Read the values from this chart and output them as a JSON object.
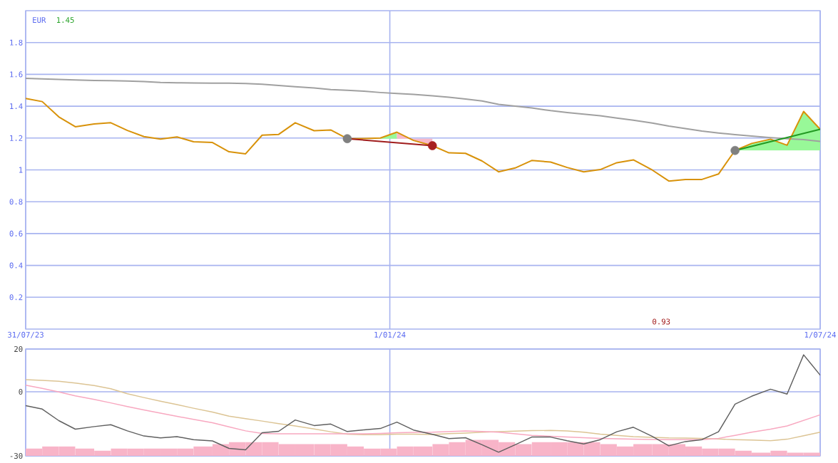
{
  "chart_data": [
    {
      "type": "line",
      "ylabel": "EUR",
      "annotations": [
        "1.45",
        "0.93"
      ],
      "x": [
        "2023-07-31",
        "2023-08-07",
        "2023-08-14",
        "2023-08-21",
        "2023-08-29",
        "2023-09-05",
        "2023-09-12",
        "2023-09-19",
        "2023-09-26",
        "2023-10-03",
        "2023-10-10",
        "2023-10-18",
        "2023-10-25",
        "2023-11-01",
        "2023-11-08",
        "2023-11-15",
        "2023-11-22",
        "2023-11-30",
        "2023-12-07",
        "2023-12-14",
        "2023-12-21",
        "2023-12-28",
        "2024-01-04",
        "2024-01-11",
        "2024-01-19",
        "2024-01-26",
        "2024-02-02",
        "2024-02-09",
        "2024-02-16",
        "2024-02-23",
        "2024-03-01",
        "2024-03-09",
        "2024-03-16",
        "2024-03-23",
        "2024-03-30",
        "2024-04-06",
        "2024-04-13",
        "2024-04-21",
        "2024-04-28",
        "2024-05-05",
        "2024-05-12",
        "2024-05-19",
        "2024-05-26",
        "2024-06-02",
        "2024-06-10",
        "2024-06-17",
        "2024-06-24",
        "2024-07-01"
      ],
      "xlim": [
        "2023-07-31",
        "2024-07-01"
      ],
      "xticks": [
        {
          "value": "2023-07-31",
          "label": "31/07/23"
        },
        {
          "value": "2024-01-01",
          "label": "1/01/24"
        },
        {
          "value": "2024-07-01",
          "label": "1/07/24"
        }
      ],
      "ylim": [
        0,
        2
      ],
      "yticks": [
        0.2,
        0.4,
        0.6,
        0.8,
        1,
        1.2,
        1.4,
        1.6,
        1.8
      ],
      "grid": true,
      "series": [
        {
          "type": "area",
          "color": "#98f898",
          "x": [
            "2023-12-28",
            "2024-01-04"
          ],
          "values": [
            null,
            null
          ],
          "upper": [
            1.2,
            1.237
          ],
          "lower": [
            1.196,
            1.196
          ]
        },
        {
          "type": "area",
          "color": "#f8b8c8",
          "x": [
            "2024-01-04",
            "2024-01-11",
            "2024-01-19"
          ],
          "values": [
            null,
            null,
            null
          ],
          "upper": [
            1.237,
            1.185,
            1.152
          ],
          "lower": [
            1.196,
            1.196,
            1.196
          ]
        },
        {
          "type": "area",
          "color": "#98f898",
          "x": [
            "2024-05-26",
            "2024-06-02",
            "2024-06-10",
            "2024-06-17",
            "2024-06-24",
            "2024-07-01"
          ],
          "values": [
            null,
            null,
            null,
            null,
            null,
            null
          ],
          "upper": [
            1.122,
            1.166,
            1.193,
            1.155,
            1.367,
            1.255
          ],
          "lower": [
            1.122,
            1.122,
            1.122,
            1.122,
            1.122,
            1.122
          ]
        },
        {
          "color": "#a0a0a0",
          "values": [
            1.575,
            1.572,
            1.568,
            1.565,
            1.562,
            1.56,
            1.558,
            1.555,
            1.549,
            1.547,
            1.546,
            1.545,
            1.545,
            1.543,
            1.538,
            1.53,
            1.522,
            1.514,
            1.505,
            1.5,
            1.494,
            1.486,
            1.48,
            1.474,
            1.465,
            1.456,
            1.445,
            1.433,
            1.412,
            1.4,
            1.389,
            1.372,
            1.36,
            1.35,
            1.34,
            1.326,
            1.312,
            1.294,
            1.275,
            1.26,
            1.244,
            1.232,
            1.221,
            1.212,
            1.203,
            1.196,
            1.19,
            1.179
          ]
        },
        {
          "color": "#d8920a",
          "values": [
            1.449,
            1.429,
            1.333,
            1.271,
            1.289,
            1.296,
            1.248,
            1.209,
            1.193,
            1.207,
            1.177,
            1.172,
            1.114,
            1.101,
            1.218,
            1.223,
            1.296,
            1.246,
            1.251,
            1.196,
            1.197,
            1.2,
            1.237,
            1.185,
            1.152,
            1.107,
            1.104,
            1.056,
            0.988,
            1.012,
            1.059,
            1.049,
            1.015,
            0.988,
            1.002,
            1.045,
            1.063,
            0.999,
            0.93,
            0.94,
            0.94,
            0.974,
            1.122,
            1.166,
            1.193,
            1.155,
            1.367,
            1.255
          ]
        },
        {
          "type": "line",
          "color": "#a01c1c",
          "x": [
            "2023-12-14",
            "2024-01-19"
          ],
          "values": [
            1.196,
            1.152
          ]
        },
        {
          "type": "line",
          "color": "#229a22",
          "x": [
            "2024-05-26",
            "2024-07-01"
          ],
          "values": [
            1.122,
            1.255
          ]
        },
        {
          "type": "scatter",
          "color": "#808080",
          "x": [
            "2023-12-14",
            "2024-05-26"
          ],
          "values": [
            1.196,
            1.122
          ]
        },
        {
          "type": "scatter",
          "color": "#a82020",
          "x": [
            "2024-01-19"
          ],
          "values": [
            1.152
          ]
        }
      ]
    },
    {
      "type": "line",
      "x": [
        "2023-07-31",
        "2023-08-07",
        "2023-08-14",
        "2023-08-21",
        "2023-08-29",
        "2023-09-05",
        "2023-09-12",
        "2023-09-19",
        "2023-09-26",
        "2023-10-03",
        "2023-10-10",
        "2023-10-18",
        "2023-10-25",
        "2023-11-01",
        "2023-11-08",
        "2023-11-15",
        "2023-11-22",
        "2023-11-30",
        "2023-12-07",
        "2023-12-14",
        "2023-12-21",
        "2023-12-28",
        "2024-01-04",
        "2024-01-11",
        "2024-01-19",
        "2024-01-26",
        "2024-02-02",
        "2024-02-09",
        "2024-02-16",
        "2024-02-23",
        "2024-03-01",
        "2024-03-09",
        "2024-03-16",
        "2024-03-23",
        "2024-03-30",
        "2024-04-06",
        "2024-04-13",
        "2024-04-21",
        "2024-04-28",
        "2024-05-05",
        "2024-05-12",
        "2024-05-19",
        "2024-05-26",
        "2024-06-02",
        "2024-06-10",
        "2024-06-17",
        "2024-06-24",
        "2024-07-01"
      ],
      "xlim": [
        "2023-07-31",
        "2024-07-01"
      ],
      "xticks": [
        {
          "value": "2023-07-31",
          "label": null
        },
        {
          "value": "2024-01-01",
          "label": null
        },
        {
          "value": "2024-07-01",
          "label": null
        }
      ],
      "ylim": [
        -30,
        20
      ],
      "yticks": [
        -30,
        0,
        20
      ],
      "grid": true,
      "tick_labels": "y",
      "series": [
        {
          "type": "histogram",
          "color": "#f8b4c8",
          "bins": [
            "2023-07-31",
            "2023-08-07",
            "2023-08-14",
            "2023-08-21",
            "2023-08-29",
            "2023-09-05",
            "2023-09-12",
            "2023-09-19",
            "2023-09-26",
            "2023-10-03",
            "2023-10-10",
            "2023-10-18",
            "2023-10-25",
            "2023-11-01",
            "2023-11-08",
            "2023-11-15",
            "2023-11-22",
            "2023-11-30",
            "2023-12-07",
            "2023-12-14",
            "2023-12-21",
            "2023-12-28",
            "2024-01-04",
            "2024-01-11",
            "2024-01-19",
            "2024-01-26",
            "2024-02-02",
            "2024-02-09",
            "2024-02-16",
            "2024-02-23",
            "2024-03-01",
            "2024-03-09",
            "2024-03-16",
            "2024-03-23",
            "2024-03-30",
            "2024-04-06",
            "2024-04-13",
            "2024-04-21",
            "2024-04-28",
            "2024-05-05",
            "2024-05-12",
            "2024-05-19",
            "2024-05-26",
            "2024-06-02",
            "2024-06-10",
            "2024-06-17",
            "2024-06-24",
            "2024-07-01"
          ],
          "base": [
            -30,
            -30,
            -30,
            -30,
            -30,
            -30,
            -30,
            -30,
            -30,
            -30,
            -30,
            -30,
            -30,
            -30,
            -30,
            -30,
            -30,
            -30,
            -30,
            -30,
            -30,
            -30,
            -30,
            -30,
            -30,
            -30,
            -30,
            -30,
            -30,
            -30,
            -30,
            -30,
            -30,
            -30,
            -30,
            -30,
            -30,
            -30,
            -30,
            -30,
            -30,
            -30,
            -30,
            -30,
            -30,
            -30,
            -30
          ],
          "values": [
            3.4,
            4.4,
            4.4,
            3.4,
            2.4,
            3.4,
            3.4,
            3.4,
            3.4,
            3.4,
            4.4,
            5.5,
            6.4,
            6.4,
            6.4,
            5.5,
            5.5,
            5.5,
            5.5,
            4.4,
            3.4,
            3.4,
            4.4,
            4.4,
            5.5,
            6.4,
            7.5,
            7.5,
            6.4,
            5.5,
            6.4,
            6.4,
            6.4,
            6.4,
            5.5,
            4.4,
            5.5,
            5.5,
            5.5,
            4.4,
            3.4,
            3.4,
            2.4,
            1.5,
            2.4,
            1.5,
            1.5
          ]
        },
        {
          "color": "#dcc494",
          "values": [
            5.7,
            5.3,
            4.9,
            4.1,
            2.9,
            1.4,
            -0.9,
            -2.7,
            -4.4,
            -6.0,
            -7.7,
            -9.5,
            -11.4,
            -12.6,
            -13.7,
            -14.9,
            -16.0,
            -17.4,
            -18.7,
            -19.8,
            -20.1,
            -20.1,
            -19.8,
            -19.8,
            -20.0,
            -19.6,
            -19.3,
            -18.9,
            -18.7,
            -18.4,
            -18.2,
            -18.1,
            -18.3,
            -18.9,
            -19.8,
            -20.4,
            -21.0,
            -21.3,
            -21.6,
            -21.7,
            -21.8,
            -22.1,
            -22.4,
            -22.6,
            -22.9,
            -22.2,
            -20.6,
            -18.9
          ]
        },
        {
          "color": "#f8a8c0",
          "values": [
            3.1,
            1.6,
            -0.1,
            -1.9,
            -3.6,
            -5.2,
            -6.9,
            -8.5,
            -10.0,
            -11.5,
            -12.9,
            -14.5,
            -16.4,
            -18.3,
            -19.5,
            -19.7,
            -19.7,
            -19.7,
            -19.7,
            -19.7,
            -19.7,
            -19.5,
            -19.2,
            -19.0,
            -18.9,
            -18.6,
            -18.3,
            -18.6,
            -18.9,
            -19.7,
            -20.4,
            -20.8,
            -21.2,
            -21.5,
            -21.8,
            -22.0,
            -22.2,
            -22.3,
            -22.4,
            -22.4,
            -22.4,
            -21.8,
            -20.4,
            -18.9,
            -17.5,
            -16.0,
            -13.4,
            -10.8
          ]
        },
        {
          "color": "#606060",
          "values": [
            -6.5,
            -8.1,
            -13.5,
            -17.5,
            -16.3,
            -15.4,
            -18.3,
            -20.7,
            -21.6,
            -21.0,
            -22.4,
            -23.0,
            -26.5,
            -27.2,
            -19.2,
            -18.5,
            -13.2,
            -15.8,
            -15.1,
            -18.6,
            -17.8,
            -17.2,
            -14.2,
            -17.9,
            -19.9,
            -21.9,
            -21.5,
            -24.8,
            -28.3,
            -24.8,
            -21.2,
            -21.2,
            -22.9,
            -24.4,
            -22.4,
            -18.7,
            -16.6,
            -20.9,
            -25.3,
            -23.3,
            -22.4,
            -18.7,
            -5.8,
            -2.1,
            1.2,
            -1.1,
            17.3,
            7.8
          ]
        }
      ]
    }
  ]
}
